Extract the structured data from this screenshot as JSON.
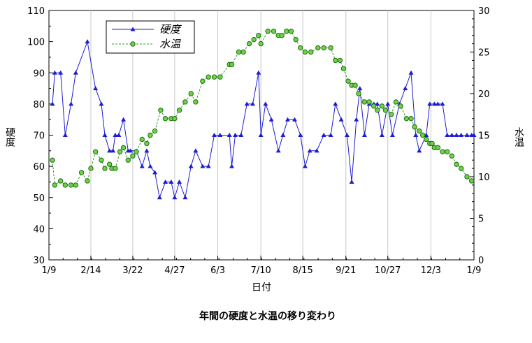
{
  "chart_data": {
    "type": "line",
    "title": "年間の硬度と水温の移り変わり",
    "xlabel": "日付",
    "ylabel_left": "硬度",
    "ylabel_right": "水温",
    "xlim": [
      0,
      365
    ],
    "ylim_left": [
      30,
      110
    ],
    "ylim_right": [
      0,
      30
    ],
    "grid": "vertical",
    "legend_position": "top-left",
    "x_ticks": [
      {
        "x": 0,
        "label": "1/9"
      },
      {
        "x": 36,
        "label": "2/14"
      },
      {
        "x": 72,
        "label": "3/22"
      },
      {
        "x": 108,
        "label": "4/27"
      },
      {
        "x": 145,
        "label": "6/3"
      },
      {
        "x": 182,
        "label": "7/10"
      },
      {
        "x": 218,
        "label": "8/15"
      },
      {
        "x": 255,
        "label": "9/21"
      },
      {
        "x": 291,
        "label": "10/27"
      },
      {
        "x": 328,
        "label": "12/3"
      },
      {
        "x": 365,
        "label": "1/9"
      }
    ],
    "y_ticks_left": [
      "30",
      "40",
      "50",
      "60",
      "70",
      "80",
      "90",
      "100",
      "110"
    ],
    "y_ticks_right": [
      "0",
      "5",
      "10",
      "15",
      "20",
      "25",
      "30"
    ],
    "series": [
      {
        "name": "硬度",
        "axis": "left",
        "color": "#1c1cd2",
        "marker": "triangle",
        "line": "solid",
        "x": [
          3,
          5,
          10,
          14,
          19,
          23,
          33,
          40,
          45,
          48,
          52,
          55,
          57,
          60,
          64,
          68,
          70,
          75,
          80,
          84,
          87,
          91,
          95,
          100,
          105,
          108,
          112,
          117,
          122,
          126,
          132,
          137,
          142,
          147,
          155,
          157,
          160,
          165,
          170,
          175,
          180,
          182,
          186,
          191,
          197,
          201,
          205,
          211,
          216,
          220,
          224,
          230,
          236,
          242,
          246,
          251,
          256,
          260,
          264,
          267,
          271,
          275,
          279,
          282,
          286,
          291,
          295,
          301,
          306,
          311,
          315,
          318,
          324,
          327,
          331,
          334,
          338,
          342,
          346,
          350,
          354,
          359,
          363,
          365
        ],
        "y": [
          80,
          90,
          90,
          70,
          80,
          90,
          100,
          85,
          80,
          70,
          65,
          65,
          70,
          70,
          75,
          65,
          65,
          65,
          60,
          65,
          60,
          58,
          50,
          55,
          55,
          50,
          55,
          50,
          60,
          65,
          60,
          60,
          70,
          70,
          70,
          60,
          70,
          70,
          80,
          80,
          90,
          70,
          80,
          75,
          65,
          70,
          75,
          75,
          70,
          60,
          65,
          65,
          70,
          70,
          80,
          75,
          70,
          55,
          75,
          85,
          70,
          80,
          80,
          80,
          70,
          80,
          70,
          80,
          85,
          90,
          70,
          65,
          70,
          80,
          80,
          80,
          80,
          70,
          70,
          70,
          70,
          70,
          70,
          70
        ]
      },
      {
        "name": "水温",
        "axis": "right",
        "color": "#2ea01e",
        "marker": "circle",
        "line": "dashed",
        "x": [
          3,
          5,
          10,
          14,
          19,
          23,
          28,
          33,
          36,
          40,
          45,
          48,
          52,
          54,
          57,
          61,
          64,
          68,
          72,
          75,
          80,
          84,
          87,
          91,
          96,
          100,
          105,
          108,
          112,
          117,
          122,
          126,
          132,
          137,
          142,
          147,
          155,
          157,
          163,
          167,
          172,
          176,
          180,
          182,
          188,
          193,
          197,
          200,
          204,
          208,
          212,
          216,
          220,
          225,
          231,
          236,
          242,
          246,
          250,
          253,
          257,
          260,
          263,
          266,
          271,
          275,
          279,
          282,
          286,
          289,
          294,
          298,
          302,
          307,
          311,
          314,
          318,
          321,
          324,
          327,
          329,
          331,
          334,
          338,
          342,
          346,
          350,
          354,
          359,
          363
        ],
        "y": [
          12,
          9,
          9.5,
          9,
          9,
          9,
          10.5,
          9.5,
          11,
          13,
          12,
          11,
          11.5,
          11,
          11,
          13,
          13.5,
          12,
          12.5,
          13,
          14.5,
          14,
          15,
          15.5,
          18,
          17,
          17,
          17,
          18,
          19,
          20,
          19,
          21.5,
          22,
          22,
          22,
          23.5,
          23.5,
          25,
          25,
          26,
          26.5,
          27,
          26,
          27.5,
          27.5,
          27,
          27,
          27.5,
          27.5,
          26.5,
          25.5,
          25,
          25,
          25.5,
          25.5,
          25.5,
          24,
          24,
          23,
          21.5,
          21,
          21,
          20,
          19,
          19,
          18.5,
          18,
          18.5,
          18,
          17.5,
          19,
          18.5,
          17,
          17,
          16,
          15.5,
          15,
          14.5,
          14,
          14,
          13.5,
          13.5,
          13,
          13,
          12.5,
          11.5,
          11,
          10,
          9.5
        ]
      }
    ]
  }
}
